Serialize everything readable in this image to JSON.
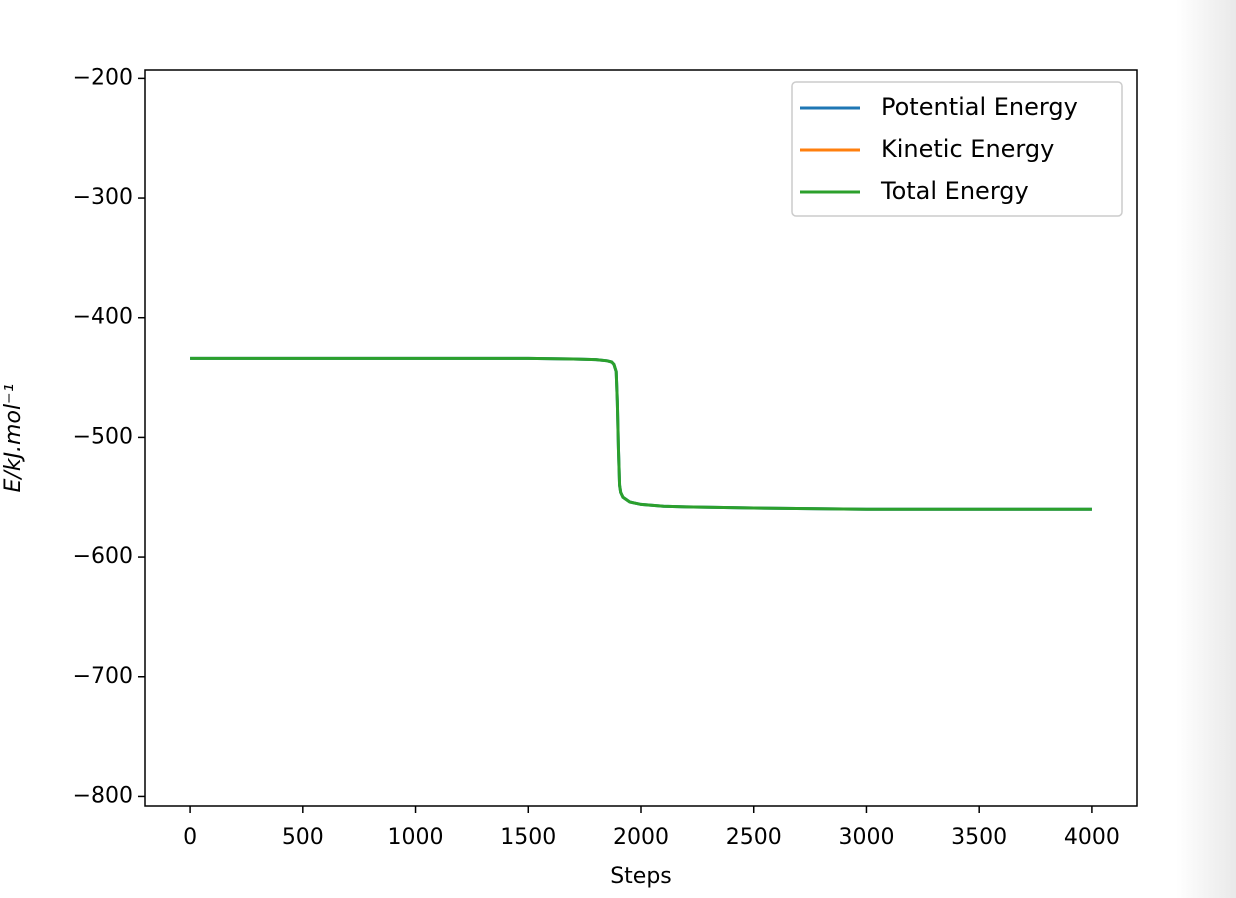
{
  "chart_data": {
    "type": "line",
    "x_label": "Steps",
    "y_label": "E/kJ.mol⁻¹",
    "x": [
      0,
      500,
      1000,
      1500,
      1700,
      1800,
      1850,
      1870,
      1880,
      1890,
      1895,
      1900,
      1905,
      1910,
      1920,
      1950,
      2000,
      2100,
      2200,
      2500,
      3000,
      3500,
      4000
    ],
    "series": [
      {
        "name": "Potential Energy",
        "color": "#1f77b4",
        "values": [
          -434,
          -434,
          -434,
          -434,
          -434.5,
          -435,
          -436,
          -437,
          -439,
          -445,
          -470,
          -510,
          -540,
          -546,
          -550,
          -554,
          -556,
          -557.5,
          -558,
          -559,
          -560,
          -560,
          -560
        ]
      },
      {
        "name": "Kinetic Energy",
        "color": "#ff7f0e",
        "values": [
          null,
          null,
          null,
          null,
          null,
          null,
          null,
          null,
          null,
          null,
          null,
          null,
          null,
          null,
          null,
          null,
          null,
          null,
          null,
          null,
          null,
          null,
          null
        ]
      },
      {
        "name": "Total Energy",
        "color": "#2ca02c",
        "values": [
          -434,
          -434,
          -434,
          -434,
          -434.5,
          -435,
          -436,
          -437,
          -439,
          -445,
          -470,
          -510,
          -540,
          -546,
          -550,
          -554,
          -556,
          -557.5,
          -558,
          -559,
          -560,
          -560,
          -560
        ]
      }
    ],
    "xlim": [
      -200,
      4200
    ],
    "ylim": [
      -808,
      -193
    ],
    "xticks": [
      0,
      500,
      1000,
      1500,
      2000,
      2500,
      3000,
      3500,
      4000
    ],
    "yticks": [
      {
        "value": -200,
        "label": "−200"
      },
      {
        "value": -300,
        "label": "−300"
      },
      {
        "value": -400,
        "label": "−400"
      },
      {
        "value": -500,
        "label": "−500"
      },
      {
        "value": -600,
        "label": "−600"
      },
      {
        "value": -700,
        "label": "−700"
      },
      {
        "value": -800,
        "label": "−800"
      }
    ],
    "legend": "upper right"
  }
}
